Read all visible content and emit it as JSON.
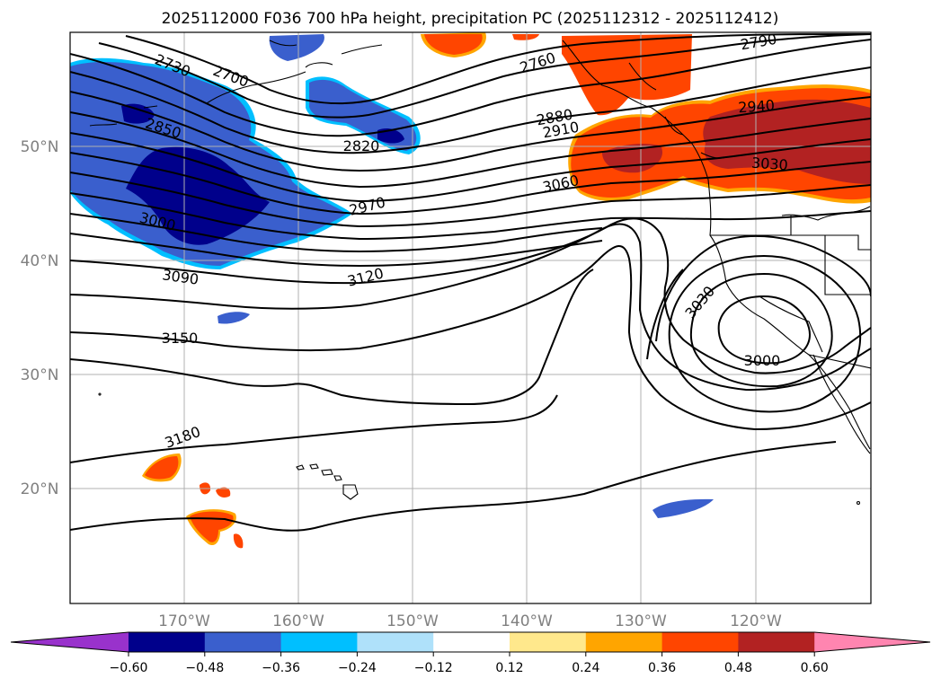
{
  "title": "2025112000 F036 700 hPa height, precipitation PC (2025112312 - 2025112412)",
  "lat_labels": [
    "50°N",
    "40°N",
    "30°N",
    "20°N"
  ],
  "lon_labels": [
    "170°W",
    "160°W",
    "150°W",
    "140°W",
    "130°W",
    "120°W"
  ],
  "contour_labels": [
    "2730",
    "2700",
    "2850",
    "2820",
    "2760",
    "2790",
    "2880",
    "2910",
    "2940",
    "2970",
    "3000",
    "3030",
    "3060",
    "3090",
    "3120",
    "3150",
    "3180",
    "3030",
    "3000"
  ],
  "colorbar": {
    "ticks": [
      "−0.60",
      "−0.48",
      "−0.36",
      "−0.24",
      "−0.12",
      "0.12",
      "0.24",
      "0.36",
      "0.48",
      "0.60"
    ],
    "colors": [
      "#9932cc",
      "#00008b",
      "#3a5fcd",
      "#00bfff",
      "#afe1fa",
      "#ffffff",
      "#ffe88c",
      "#ffa500",
      "#ff4500",
      "#b22222",
      "#ff85b0"
    ]
  },
  "colors": {
    "contour": "#000000",
    "grid": "#b0b0b0",
    "coast": "#000000"
  }
}
